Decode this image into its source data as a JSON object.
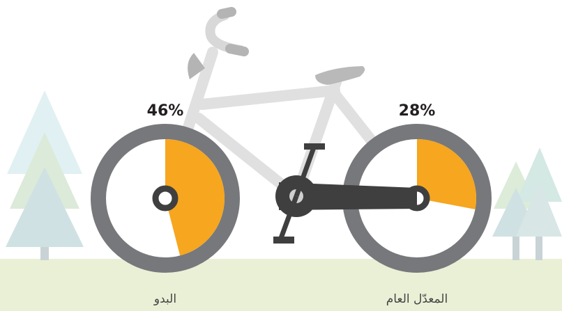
{
  "chart_data": [
    {
      "type": "pie",
      "categories": [
        "البدو"
      ],
      "values": [
        46
      ],
      "value_labels": [
        "46%"
      ],
      "color": "#f6a61f"
    },
    {
      "type": "pie",
      "categories": [
        "المعدّل العام"
      ],
      "values": [
        28
      ],
      "value_labels": [
        "28%"
      ],
      "color": "#f6a61f"
    }
  ]
}
